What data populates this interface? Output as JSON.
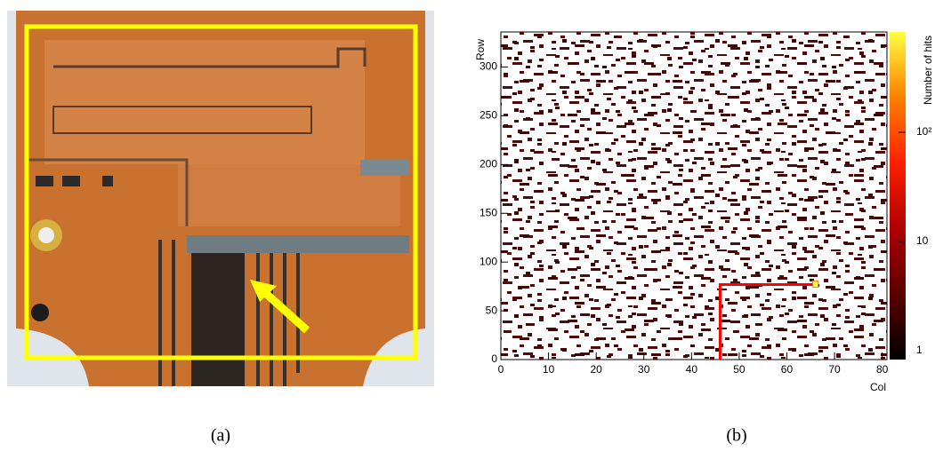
{
  "captions": [
    "(a)",
    "(b)"
  ],
  "chart_data": {
    "type": "heatmap",
    "x_label": "Col",
    "y_label": "Row",
    "xlim": [
      0,
      81
    ],
    "xticks": [
      0,
      10,
      20,
      30,
      40,
      50,
      60,
      70,
      80
    ],
    "ylim": [
      0,
      336
    ],
    "yticks": [
      0,
      50,
      100,
      150,
      200,
      250,
      300
    ],
    "colorbar": {
      "label": "Number of hits",
      "log": true,
      "zlim": [
        0.83,
        830
      ],
      "ticks": [
        1,
        10,
        {
          "value": 100,
          "label": "10²"
        }
      ],
      "colormap": [
        "#000000",
        "#5a0000",
        "#b00000",
        "#ff2000",
        "#ff8000",
        "#ffff40"
      ]
    },
    "track": {
      "color": "#ff0000",
      "x": [
        46,
        46,
        66
      ],
      "y": [
        0,
        77,
        77
      ]
    },
    "hit_color": "#4a0c0c"
  }
}
